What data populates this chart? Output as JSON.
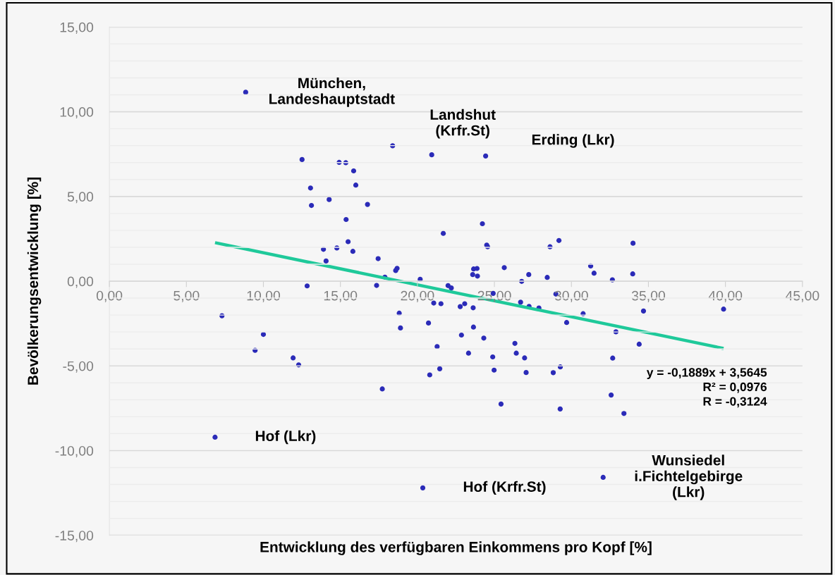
{
  "chart_data": {
    "type": "scatter",
    "xlabel": "Entwicklung des verfügbaren Einkommens pro Kopf [%]",
    "ylabel": "Bevölkerungsentwicklung [%]",
    "xlim": [
      0,
      45
    ],
    "ylim": [
      -15,
      15
    ],
    "xticks": [
      {
        "value": 0,
        "label": "0,00"
      },
      {
        "value": 5,
        "label": "5,00"
      },
      {
        "value": 10,
        "label": "10,00"
      },
      {
        "value": 15,
        "label": "15,00"
      },
      {
        "value": 20,
        "label": "20,00"
      },
      {
        "value": 25,
        "label": "25,00"
      },
      {
        "value": 30,
        "label": "30,00"
      },
      {
        "value": 35,
        "label": "35,00"
      },
      {
        "value": 40,
        "label": "40,00"
      },
      {
        "value": 45,
        "label": "45,00"
      }
    ],
    "yticks": [
      {
        "value": -15,
        "label": "-15,00"
      },
      {
        "value": -10,
        "label": "-10,00"
      },
      {
        "value": -5,
        "label": "-5,00"
      },
      {
        "value": 0,
        "label": "0,00"
      },
      {
        "value": 5,
        "label": "5,00"
      },
      {
        "value": 10,
        "label": "10,00"
      },
      {
        "value": 15,
        "label": "15,00"
      }
    ],
    "grid": "y",
    "legend": false,
    "marker": "circle",
    "series": [
      {
        "color": "#2b2bb8",
        "x": [
          8.85,
          12.51,
          14.92,
          15.35,
          15.86,
          13.06,
          16.0,
          13.12,
          14.27,
          16.76,
          15.37,
          15.5,
          13.9,
          14.77,
          15.81,
          14.07,
          17.45,
          17.89,
          12.84,
          17.35,
          7.31,
          18.39,
          20.93,
          24.43,
          24.22,
          21.68,
          24.5,
          24.56,
          28.61,
          29.19,
          34.0,
          18.68,
          18.59,
          20.18,
          23.65,
          23.87,
          23.59,
          23.9,
          25.64,
          26.77,
          27.23,
          28.43,
          31.25,
          31.47,
          32.66,
          33.98,
          21.99,
          22.2,
          24.92,
          28.99,
          21.06,
          21.53,
          22.78,
          23.07,
          23.62,
          26.7,
          27.25,
          27.89,
          18.82,
          30.76,
          34.68,
          20.72,
          29.69,
          39.88,
          34.4,
          18.9,
          21.28,
          20.8,
          21.45,
          22.86,
          23.32,
          23.64,
          24.31,
          24.89,
          24.98,
          25.43,
          26.33,
          26.42,
          26.96,
          27.06,
          28.82,
          29.28,
          29.27,
          32.89,
          32.68,
          32.58,
          33.41,
          20.35,
          32.06,
          10.0,
          9.46,
          11.93,
          12.29,
          17.72,
          6.86
        ],
        "values": [
          11.15,
          7.18,
          7.01,
          6.99,
          6.51,
          5.5,
          5.67,
          4.47,
          4.82,
          4.53,
          3.64,
          2.33,
          1.88,
          1.96,
          1.76,
          1.19,
          1.33,
          0.24,
          -0.28,
          -0.25,
          -2.04,
          7.99,
          7.46,
          7.39,
          3.39,
          2.82,
          2.13,
          2.03,
          2.03,
          2.4,
          2.24,
          0.76,
          0.63,
          0.11,
          0.72,
          0.75,
          0.39,
          0.3,
          0.8,
          -0.01,
          0.39,
          0.22,
          0.9,
          0.47,
          0.08,
          0.43,
          -0.26,
          -0.4,
          -0.72,
          -0.76,
          -1.29,
          -1.33,
          -1.5,
          -1.33,
          -1.57,
          -1.24,
          -1.49,
          -1.58,
          -1.89,
          -1.92,
          -1.76,
          -2.47,
          -2.44,
          -1.65,
          -3.72,
          -2.76,
          -3.86,
          -5.53,
          -5.17,
          -3.18,
          -4.25,
          -2.71,
          -3.36,
          -4.47,
          -5.25,
          -7.25,
          -3.67,
          -4.25,
          -4.53,
          -5.39,
          -5.4,
          -5.06,
          -7.54,
          -2.99,
          -4.54,
          -6.72,
          -7.81,
          -12.2,
          -11.58,
          -3.14,
          -4.08,
          -4.53,
          -4.94,
          -6.36,
          -9.21
        ]
      },
      {
        "type": "line",
        "color": "#1fc99a",
        "marker": "none",
        "x": [
          6.86,
          39.88
        ],
        "values": [
          2.27,
          -3.97
        ]
      }
    ],
    "annotations": [
      {
        "text": "München,\nLandeshauptstadt",
        "x": 8.85,
        "y": 11.15
      },
      {
        "text": "Landshut\n(Krfr.St)",
        "x": 20.93,
        "y": 7.46
      },
      "Erding (Lkr)",
      {
        "text": "Hof (Lkr)",
        "x": 6.86,
        "y": -9.21
      },
      {
        "text": "Hof (Krfr.St)",
        "x": 20.35,
        "y": -12.2
      },
      {
        "text": "Wunsiedel\ni.Fichtelgebirge\n(Lkr)",
        "x": 32.06,
        "y": -11.58
      },
      "y = -0,1889x + 3,5645\nR² = 0,0976\nR = -0,3124"
    ]
  }
}
